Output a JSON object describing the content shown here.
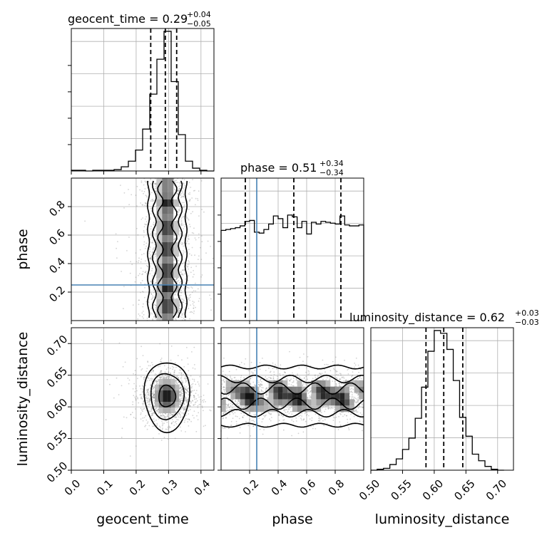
{
  "labels": {
    "geocent_time": "geocent_time",
    "phase": "phase",
    "luminosity_distance": "luminosity_distance"
  },
  "titles": {
    "geocent_time": {
      "prefix": "geocent_time = ",
      "median": "0.29",
      "plus": "+0.04",
      "minus": "−0.05"
    },
    "phase": {
      "prefix": "phase = ",
      "median": "0.51",
      "plus": "+0.34",
      "minus": "−0.34"
    },
    "luminosity_distance": {
      "prefix": "luminosity_distance = ",
      "median": "0.62",
      "plus": "+0.03",
      "minus": "−0.03"
    }
  },
  "colors": {
    "truth": "#4682b4",
    "contour": "#000000",
    "density": "#6e6e6e"
  },
  "chart_data": {
    "type": "corner",
    "parameters": [
      "geocent_time",
      "phase",
      "luminosity_distance"
    ],
    "ranges": {
      "geocent_time": [
        0.0,
        0.44
      ],
      "phase": [
        0.0,
        1.0
      ],
      "luminosity_distance": [
        0.5,
        0.725
      ]
    },
    "ticks": {
      "geocent_time": [
        "0.0",
        "0.1",
        "0.2",
        "0.3",
        "0.4"
      ],
      "phase": [
        "0.2",
        "0.4",
        "0.6",
        "0.8"
      ],
      "luminosity_distance": [
        "0.50",
        "0.55",
        "0.60",
        "0.65",
        "0.70"
      ]
    },
    "truths": {
      "phase": 0.25
    },
    "quantiles": {
      "geocent_time": [
        0.245,
        0.29,
        0.325
      ],
      "phase": [
        0.17,
        0.51,
        0.84
      ],
      "luminosity_distance": [
        0.587,
        0.615,
        0.645
      ]
    },
    "histograms": {
      "geocent_time": {
        "edges": [
          0.0,
          0.022,
          0.044,
          0.066,
          0.088,
          0.11,
          0.132,
          0.154,
          0.176,
          0.198,
          0.22,
          0.242,
          0.264,
          0.286,
          0.308,
          0.33,
          0.352,
          0.374,
          0.396,
          0.418,
          0.44
        ],
        "counts": [
          1,
          1,
          0,
          1,
          1,
          1,
          2,
          6,
          14,
          30,
          60,
          110,
          160,
          200,
          128,
          52,
          14,
          4,
          1,
          0
        ]
      },
      "phase": {
        "edges": [
          0.0,
          0.0333,
          0.0667,
          0.1,
          0.1333,
          0.1667,
          0.2,
          0.2333,
          0.2667,
          0.3,
          0.3333,
          0.3667,
          0.4,
          0.4333,
          0.4667,
          0.5,
          0.5333,
          0.5667,
          0.6,
          0.6333,
          0.6667,
          0.7,
          0.7333,
          0.7667,
          0.8,
          0.8333,
          0.8667,
          0.9,
          0.9333,
          0.9667,
          1.0
        ],
        "counts": [
          100,
          101,
          102,
          103,
          105,
          110,
          111,
          98,
          97,
          101,
          107,
          116,
          113,
          103,
          117,
          115,
          103,
          110,
          96,
          109,
          107,
          110,
          109,
          108,
          107,
          116,
          106,
          105,
          105,
          106
        ]
      },
      "luminosity_distance": {
        "edges": [
          0.5,
          0.51,
          0.52,
          0.53,
          0.54,
          0.55,
          0.56,
          0.57,
          0.58,
          0.59,
          0.6,
          0.61,
          0.62,
          0.63,
          0.64,
          0.65,
          0.66,
          0.67,
          0.68,
          0.69,
          0.7,
          0.71
        ],
        "counts": [
          0,
          1,
          2,
          6,
          12,
          22,
          34,
          55,
          88,
          126,
          148,
          145,
          128,
          95,
          56,
          36,
          17,
          10,
          4,
          1,
          0
        ]
      }
    },
    "contours_2d": {
      "phase_vs_geocent_time": {
        "center": [
          0.296,
          0.5
        ],
        "levels_halfwidth": [
          0.058,
          0.04,
          0.021
        ],
        "density_peaks_phase": [
          0.1,
          0.23,
          0.35,
          0.5,
          0.65,
          0.82
        ]
      },
      "luminosity_distance_vs_geocent_time": {
        "center": [
          0.295,
          0.617
        ],
        "levels_halfwidth": [
          [
            0.07,
            0.055
          ],
          [
            0.051,
            0.036
          ],
          [
            0.026,
            0.017
          ]
        ]
      },
      "luminosity_distance_vs_phase": {
        "center_ld": 0.617,
        "levels_halfwidth": [
          0.046,
          0.027,
          0.012
        ],
        "density_peaks_phase": [
          0.2,
          0.4,
          0.55,
          0.7,
          0.86
        ]
      }
    }
  }
}
